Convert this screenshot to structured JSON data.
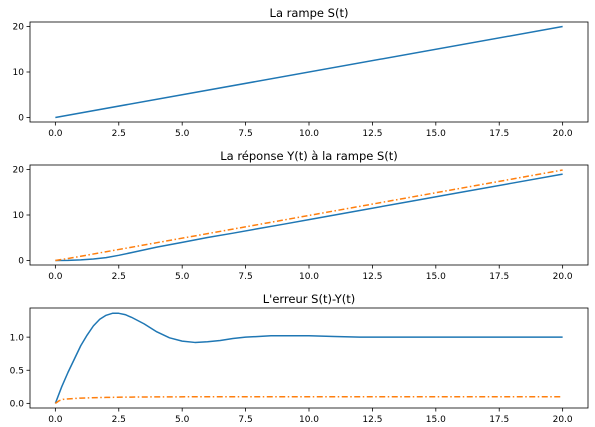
{
  "chart_data": [
    {
      "type": "line",
      "title": "La rampe S(t)",
      "xlabel": "",
      "ylabel": "",
      "xlim": [
        -1,
        21
      ],
      "ylim": [
        -1,
        21
      ],
      "xticks": [
        0.0,
        2.5,
        5.0,
        7.5,
        10.0,
        12.5,
        15.0,
        17.5,
        20.0
      ],
      "xtick_labels": [
        "0.0",
        "2.5",
        "5.0",
        "7.5",
        "10.0",
        "12.5",
        "15.0",
        "17.5",
        "20.0"
      ],
      "yticks": [
        0,
        10,
        20
      ],
      "ytick_labels": [
        "0",
        "10",
        "20"
      ],
      "grid": false,
      "series": [
        {
          "color": "#1f77b4",
          "style": "solid",
          "x": [
            0,
            20
          ],
          "y": [
            0,
            20
          ]
        }
      ]
    },
    {
      "type": "line",
      "title": "La réponse Y(t) à la rampe S(t)",
      "xlabel": "",
      "ylabel": "",
      "xlim": [
        -1,
        21
      ],
      "ylim": [
        -1,
        21
      ],
      "xticks": [
        0.0,
        2.5,
        5.0,
        7.5,
        10.0,
        12.5,
        15.0,
        17.5,
        20.0
      ],
      "xtick_labels": [
        "0.0",
        "2.5",
        "5.0",
        "7.5",
        "10.0",
        "12.5",
        "15.0",
        "17.5",
        "20.0"
      ],
      "yticks": [
        0,
        10,
        20
      ],
      "ytick_labels": [
        "0",
        "10",
        "20"
      ],
      "grid": false,
      "series": [
        {
          "color": "#1f77b4",
          "style": "solid",
          "x": [
            0,
            0.5,
            1,
            1.5,
            2,
            2.5,
            3,
            3.5,
            4,
            5,
            6,
            7,
            8,
            9,
            10,
            12,
            14,
            16,
            18,
            20
          ],
          "y": [
            0,
            0.03,
            0.13,
            0.31,
            0.63,
            1.13,
            1.73,
            2.33,
            2.93,
            3.98,
            5.05,
            6.0,
            7.0,
            7.98,
            8.98,
            11.0,
            13.0,
            15.0,
            17.0,
            19.0
          ]
        },
        {
          "color": "#ff7f0e",
          "style": "dashdot",
          "x": [
            0,
            0.5,
            1,
            2,
            3,
            4,
            6,
            8,
            10,
            12,
            14,
            16,
            18,
            20
          ],
          "y": [
            0,
            0.43,
            0.92,
            1.92,
            2.91,
            3.91,
            5.9,
            7.9,
            9.9,
            11.9,
            13.9,
            15.9,
            17.9,
            19.9
          ]
        }
      ]
    },
    {
      "type": "line",
      "title": "L'erreur S(t)-Y(t)",
      "xlabel": "",
      "ylabel": "",
      "xlim": [
        -1,
        21
      ],
      "ylim": [
        -0.07,
        1.44
      ],
      "xticks": [
        0.0,
        2.5,
        5.0,
        7.5,
        10.0,
        12.5,
        15.0,
        17.5,
        20.0
      ],
      "xtick_labels": [
        "0.0",
        "2.5",
        "5.0",
        "7.5",
        "10.0",
        "12.5",
        "15.0",
        "17.5",
        "20.0"
      ],
      "yticks": [
        0.0,
        0.5,
        1.0
      ],
      "ytick_labels": [
        "0.0",
        "0.5",
        "1.0"
      ],
      "grid": false,
      "series": [
        {
          "color": "#1f77b4",
          "style": "solid",
          "x": [
            0,
            0.25,
            0.5,
            0.75,
            1,
            1.25,
            1.5,
            1.75,
            2,
            2.25,
            2.5,
            2.75,
            3,
            3.5,
            4,
            4.5,
            5,
            5.5,
            6,
            6.5,
            7,
            7.5,
            8,
            8.5,
            9,
            9.5,
            10,
            11,
            12,
            13,
            14,
            15,
            16,
            17,
            18,
            19,
            20
          ],
          "y": [
            0,
            0.25,
            0.47,
            0.67,
            0.87,
            1.03,
            1.17,
            1.27,
            1.33,
            1.36,
            1.36,
            1.34,
            1.3,
            1.2,
            1.08,
            0.99,
            0.94,
            0.92,
            0.93,
            0.95,
            0.98,
            1.0,
            1.01,
            1.02,
            1.02,
            1.02,
            1.02,
            1.01,
            1.0,
            1.0,
            1.0,
            1.0,
            1.0,
            1.0,
            1.0,
            1.0,
            1.0
          ]
        },
        {
          "color": "#ff7f0e",
          "style": "dashdot",
          "x": [
            0,
            0.15,
            0.3,
            0.6,
            1,
            2,
            3,
            4,
            6,
            8,
            10,
            12,
            14,
            16,
            18,
            20
          ],
          "y": [
            0,
            0.04,
            0.06,
            0.07,
            0.08,
            0.09,
            0.095,
            0.098,
            0.1,
            0.1,
            0.1,
            0.1,
            0.1,
            0.1,
            0.1,
            0.1
          ]
        }
      ]
    }
  ]
}
